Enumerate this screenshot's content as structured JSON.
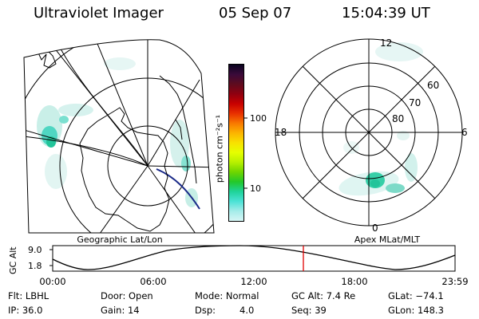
{
  "header": {
    "instrument": "Ultraviolet Imager",
    "date": "05 Sep 07",
    "time": "15:04:39 UT"
  },
  "geo_panel": {
    "label": "Geographic Lat/Lon"
  },
  "polar_panel": {
    "label": "Apex MLat/MLT",
    "mlt_labels": {
      "top": "12",
      "bottom": "0",
      "left": "18",
      "right": "6"
    },
    "lat_labels": [
      "60",
      "70",
      "80"
    ]
  },
  "colorbar": {
    "unit": "photon cm⁻²s⁻¹",
    "ticks": [
      "100",
      "10"
    ],
    "colors": [
      "#0a0420",
      "#3a0a3a",
      "#5e0b1e",
      "#8f0010",
      "#c80000",
      "#e83000",
      "#f87800",
      "#fcb400",
      "#f8e100",
      "#e6ff00",
      "#b8f000",
      "#6fd500",
      "#23c82a",
      "#1fd39a",
      "#4be2d6",
      "#a5ece9",
      "#d6f6f5"
    ]
  },
  "altitude_plot": {
    "ylabel": "GC Alt",
    "yticks": [
      "9.0",
      "1.8"
    ],
    "xticks": [
      "00:00",
      "06:00",
      "12:00",
      "18:00",
      "23:59"
    ],
    "current_time_marker": "15:04:39",
    "marker_color": "#e00000"
  },
  "info": {
    "flt": "Flt: LBHL",
    "door": "Door: Open",
    "mode": "Mode: Normal",
    "gc_alt": "GC Alt: 7.4 Re",
    "glat": "GLat: −74.1",
    "ip": "IP: 36.0",
    "gain": "Gain: 14",
    "dsp_label": "Dsp:",
    "dsp_value": "4.0",
    "seq": "Seq: 39",
    "glon": "GLon: 148.3"
  }
}
